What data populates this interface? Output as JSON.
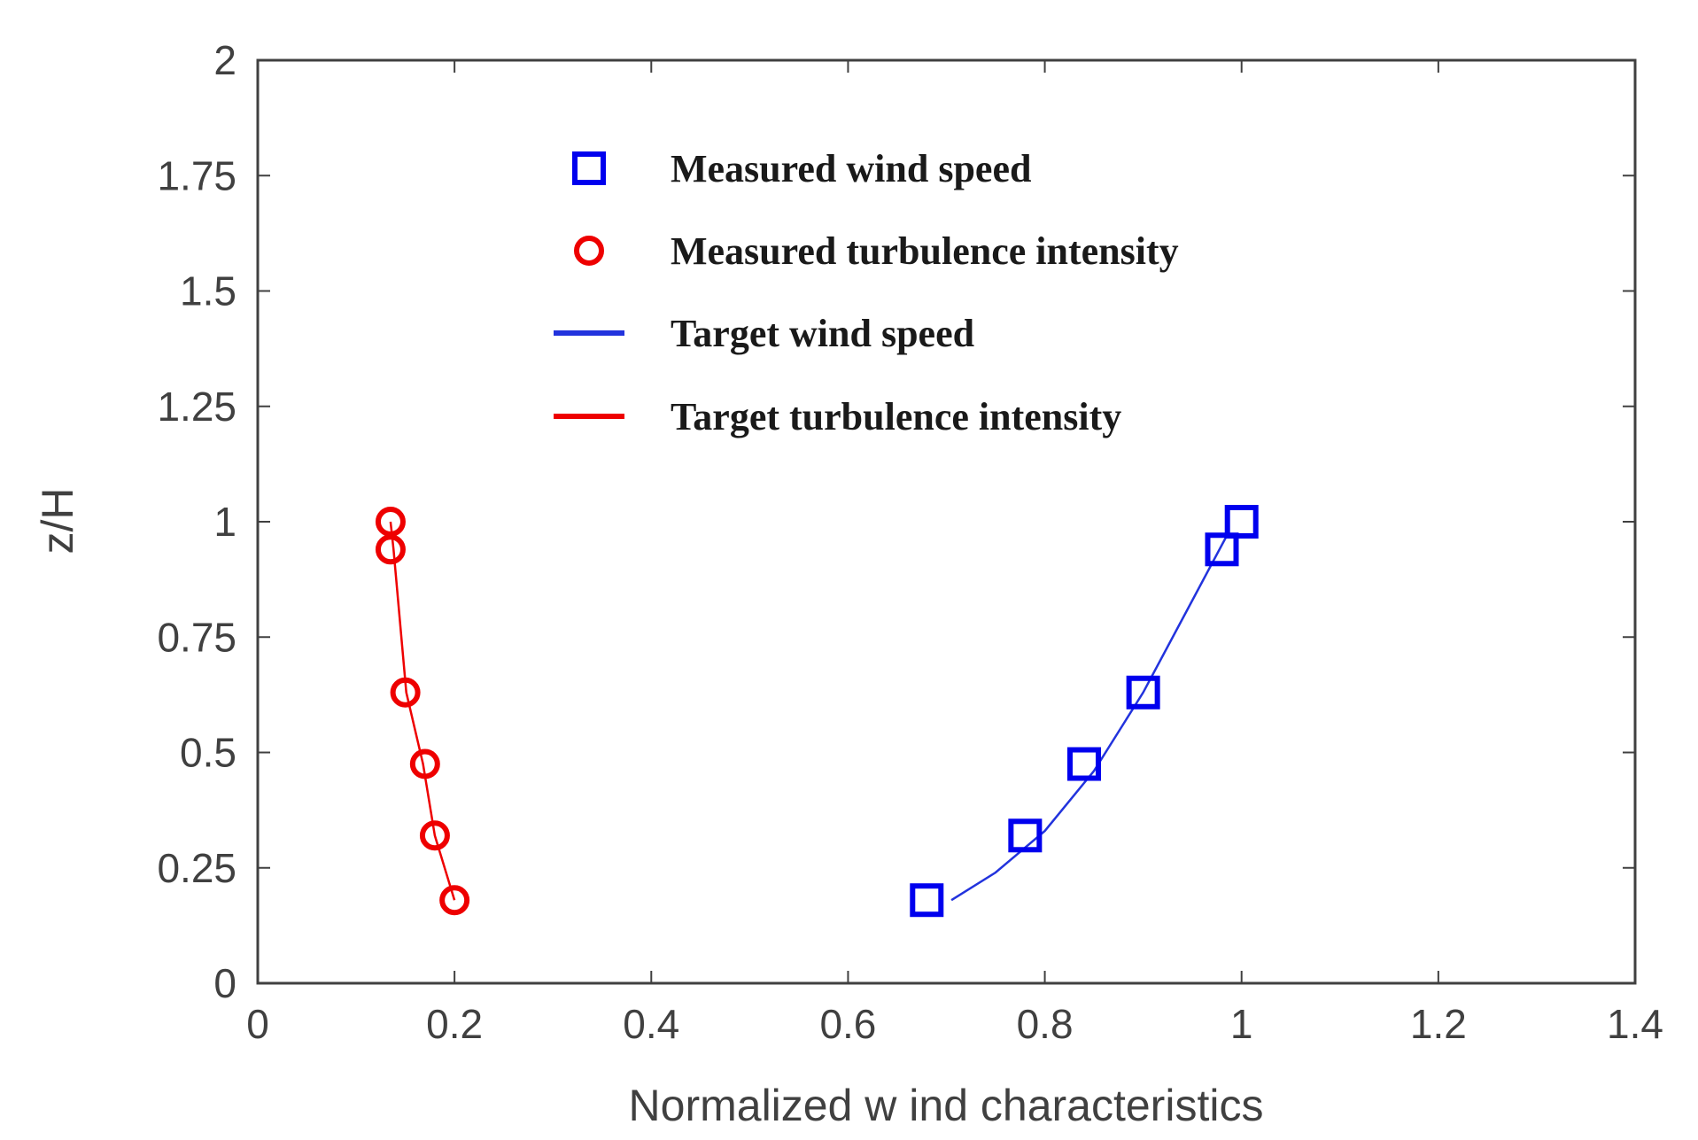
{
  "chart_data": {
    "type": "scatter",
    "xlabel": "Normalized w ind characteristics",
    "ylabel": "z/H",
    "xlim": [
      0,
      1.4
    ],
    "ylim": [
      0,
      2
    ],
    "xticks": [
      0,
      0.2,
      0.4,
      0.6,
      0.8,
      1,
      1.2,
      1.4
    ],
    "xtick_labels": [
      "0",
      "0.2",
      "0.4",
      "0.6",
      "0.8",
      "1",
      "1.2",
      "1.4"
    ],
    "yticks": [
      0,
      0.25,
      0.5,
      0.75,
      1,
      1.25,
      1.5,
      1.75,
      2
    ],
    "ytick_labels": [
      "0",
      "0.25",
      "0.5",
      "0.75",
      "1",
      "1.25",
      "1.5",
      "1.75",
      "2"
    ],
    "grid": false,
    "legend_position": "top-center",
    "series": [
      {
        "name": "Measured wind speed",
        "kind": "marker",
        "marker": "square",
        "color": "#0000ee",
        "x": [
          0.68,
          0.78,
          0.84,
          0.9,
          0.98,
          1.0
        ],
        "y": [
          0.18,
          0.32,
          0.475,
          0.63,
          0.94,
          1.0
        ]
      },
      {
        "name": "Measured turbulence intensity",
        "kind": "marker",
        "marker": "circle",
        "color": "#ee0000",
        "x": [
          0.2,
          0.18,
          0.17,
          0.15,
          0.135,
          0.135
        ],
        "y": [
          0.18,
          0.32,
          0.475,
          0.63,
          0.94,
          1.0
        ]
      },
      {
        "name": "Target wind speed",
        "kind": "line",
        "color": "#2233dd",
        "x": [
          0.705,
          0.75,
          0.8,
          0.85,
          0.9,
          0.95,
          0.985
        ],
        "y": [
          0.18,
          0.24,
          0.33,
          0.46,
          0.63,
          0.83,
          0.97
        ]
      },
      {
        "name": "Target turbulence intensity",
        "kind": "line",
        "color": "#ee0000",
        "x": [
          0.2,
          0.18,
          0.168,
          0.151,
          0.138,
          0.135
        ],
        "y": [
          0.18,
          0.32,
          0.475,
          0.63,
          0.94,
          1.0
        ]
      }
    ]
  }
}
